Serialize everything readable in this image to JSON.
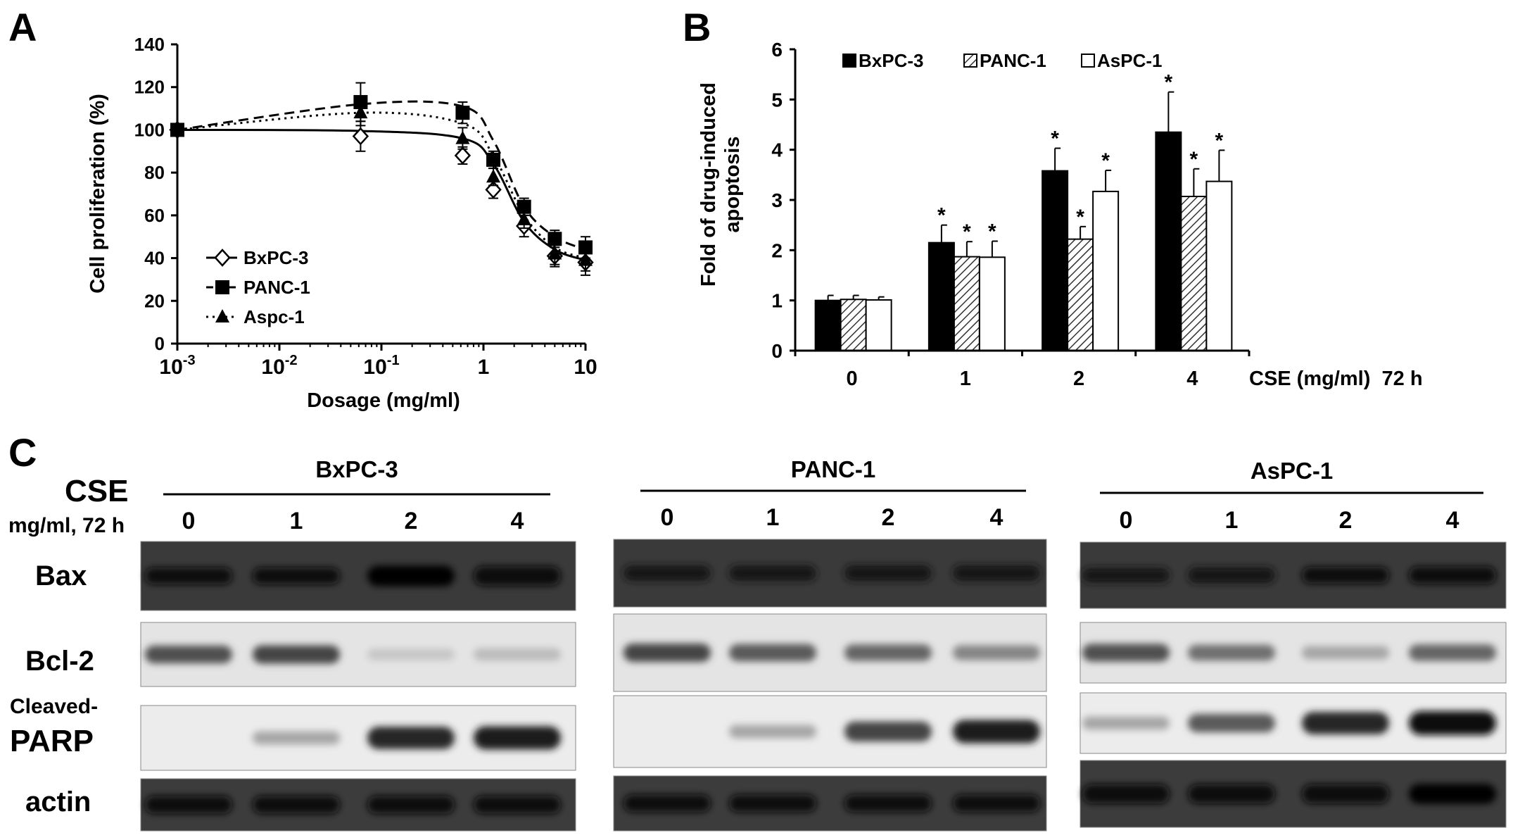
{
  "panel_labels": {
    "a": "A",
    "b": "B",
    "c": "C"
  },
  "colors": {
    "text": "#000000",
    "axis": "#000000",
    "blot_dark": "#2a2a2a",
    "blot_light": "#d8d8d8"
  },
  "chart_data": [
    {
      "type": "line",
      "panel": "A",
      "xlabel": "Dosage (mg/ml)",
      "ylabel": "Cell proliferation (%)",
      "xscale": "log",
      "xlim": [
        0.001,
        10
      ],
      "ylim": [
        0,
        140
      ],
      "yticks": [
        "0",
        "20",
        "40",
        "60",
        "80",
        "100",
        "120",
        "140"
      ],
      "xtick_bases": [
        "10",
        "10",
        "10",
        "1",
        "10"
      ],
      "xtick_exps": [
        "-3",
        "-2",
        "-1",
        "",
        ""
      ],
      "legend_position": "bottom-left",
      "series": [
        {
          "name": "BxPC-3",
          "marker": "open-diamond",
          "line": "solid",
          "x": [
            0.001,
            0.0625,
            0.625,
            1.25,
            2.5,
            5,
            10
          ],
          "y": [
            100,
            97,
            88,
            72,
            55,
            41,
            38
          ],
          "err": [
            0,
            7,
            4,
            4,
            5,
            5,
            6
          ],
          "fit_y": [
            100,
            99.5,
            96,
            84,
            57,
            44,
            39
          ]
        },
        {
          "name": "PANC-1",
          "marker": "filled-square",
          "line": "dashed",
          "x": [
            0.001,
            0.0625,
            0.625,
            1.25,
            2.5,
            5,
            10
          ],
          "y": [
            100,
            113,
            108,
            86,
            64,
            49,
            45
          ],
          "err": [
            0,
            9,
            5,
            4,
            4,
            4,
            5
          ],
          "fit_y": [
            100,
            112,
            111,
            95,
            64,
            50,
            44
          ]
        },
        {
          "name": "Aspc-1",
          "marker": "filled-triangle",
          "line": "dotted",
          "x": [
            0.001,
            0.0625,
            0.625,
            1.25,
            2.5,
            5,
            10
          ],
          "y": [
            100,
            108,
            96,
            78,
            58,
            42,
            39
          ],
          "err": [
            0,
            6,
            5,
            4,
            4,
            5,
            5
          ],
          "fit_y": [
            100,
            108,
            103,
            88,
            60,
            45,
            40
          ]
        }
      ]
    },
    {
      "type": "bar",
      "panel": "B",
      "ylabel": [
        "Fold of drug-induced",
        "apoptosis"
      ],
      "xlabel": "CSE (mg/ml)  72 h",
      "categories": [
        "0",
        "1",
        "2",
        "4"
      ],
      "ylim": [
        0,
        6
      ],
      "yticks": [
        "0",
        "1",
        "2",
        "3",
        "4",
        "5",
        "6"
      ],
      "legend_position": "top",
      "series": [
        {
          "name": "BxPC-3",
          "fill": "black",
          "values": [
            1.0,
            2.15,
            3.58,
            4.35
          ],
          "err": [
            0.1,
            0.35,
            0.45,
            0.8
          ],
          "sig": [
            "",
            "*",
            "*",
            "*"
          ]
        },
        {
          "name": "PANC-1",
          "fill": "hatched",
          "values": [
            1.02,
            1.87,
            2.22,
            3.07
          ],
          "err": [
            0.08,
            0.3,
            0.25,
            0.55
          ],
          "sig": [
            "",
            "*",
            "*",
            "*"
          ]
        },
        {
          "name": "AsPC-1",
          "fill": "white",
          "values": [
            1.01,
            1.86,
            3.17,
            3.37
          ],
          "err": [
            0.06,
            0.32,
            0.42,
            0.62
          ],
          "sig": [
            "",
            "*",
            "*",
            "*"
          ]
        }
      ]
    }
  ],
  "blot": {
    "cse_label": "CSE",
    "cse_unit": "mg/ml, 72 h",
    "lanes": [
      "0",
      "1",
      "2",
      "4"
    ],
    "row_labels": {
      "bax": "Bax",
      "bcl2": "Bcl-2",
      "parp_line1": "Cleaved-",
      "parp_line2": "PARP",
      "actin": "actin"
    },
    "cell_lines": [
      {
        "name": "BxPC-3",
        "intensity": {
          "bax": [
            0.6,
            0.6,
            0.95,
            0.85
          ],
          "bcl2": [
            0.7,
            0.75,
            0.15,
            0.2
          ],
          "parp": [
            0.0,
            0.3,
            0.9,
            0.95
          ],
          "actin": [
            0.7,
            0.7,
            0.7,
            0.7
          ]
        }
      },
      {
        "name": "PANC-1",
        "intensity": {
          "bax": [
            0.5,
            0.5,
            0.55,
            0.55
          ],
          "bcl2": [
            0.75,
            0.65,
            0.6,
            0.45
          ],
          "parp": [
            0.0,
            0.3,
            0.75,
            0.95
          ],
          "actin": [
            0.65,
            0.65,
            0.65,
            0.65
          ]
        }
      },
      {
        "name": "AsPC-1",
        "intensity": {
          "bax": [
            0.45,
            0.55,
            0.6,
            0.65
          ],
          "bcl2": [
            0.7,
            0.55,
            0.3,
            0.6
          ],
          "parp": [
            0.3,
            0.65,
            0.9,
            1.0
          ],
          "actin": [
            0.85,
            0.85,
            0.85,
            0.9
          ]
        }
      }
    ]
  }
}
